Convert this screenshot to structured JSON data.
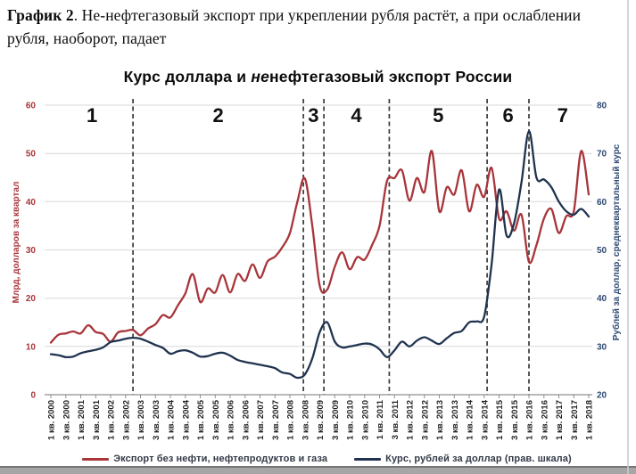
{
  "caption": {
    "label": "График 2",
    "text": ". Не-нефтегазовый экспорт при укреплении рубля растёт, а при ослаблении рубля, наоборот, падает"
  },
  "chart_data": {
    "type": "line",
    "title": "Курс доллара и ненефтегазовый экспорт России",
    "title_parts": {
      "prefix": "Курс доллара и ",
      "italic": "не",
      "suffix": "нефтегазовый экспорт России"
    },
    "left_axis": {
      "label": "Млрд, долларов за квартал",
      "min": 0,
      "max": 60,
      "step": 10,
      "color": "#a8353a"
    },
    "right_axis": {
      "label": "Рублей за доллар, среднеквартальный курс",
      "min": 20,
      "max": 80,
      "step": 10,
      "color": "#2f4a73"
    },
    "x_tick_labels": [
      "1 кв. 2000",
      "3 кв. 2000",
      "1 кв. 2001",
      "3 кв. 2001",
      "1 кв. 2002",
      "3 кв. 2002",
      "1 кв. 2003",
      "3 кв. 2003",
      "1 кв. 2004",
      "3 кв. 2004",
      "1 кв. 2005",
      "3 кв. 2005",
      "1 кв. 2006",
      "3 кв. 2006",
      "1 кв. 2007",
      "3 кв. 2007",
      "1 кв. 2008",
      "3 кв. 2008",
      "1 кв. 2009",
      "3 кв. 2009",
      "1 кв. 2010",
      "3 кв. 2010",
      "1 кв. 2011",
      "3 кв. 2011",
      "1 кв. 2012",
      "3 кв. 2012",
      "1 кв. 2013",
      "3 кв. 2013",
      "1 кв. 2014",
      "3 кв. 2014",
      "1 кв. 2015",
      "3 кв. 2015",
      "1 кв. 2016",
      "3 кв. 2016",
      "1 кв. 2017",
      "3 кв. 2017",
      "1 кв. 2018"
    ],
    "x_range_note": "quarterly 2000Q1 - 2018Q1, 73 points",
    "series": [
      {
        "name": "Экспорт без нефти, нефтепродуктов и газа",
        "axis": "left",
        "color": "#a8353a",
        "values": [
          10.8,
          12.4,
          12.7,
          13.1,
          12.7,
          14.4,
          13.0,
          12.6,
          11.0,
          12.9,
          13.2,
          13.4,
          12.3,
          13.7,
          14.6,
          16.5,
          16.0,
          18.5,
          21.0,
          25.0,
          19.2,
          22.0,
          21.2,
          24.8,
          21.2,
          25.0,
          23.6,
          27.0,
          24.2,
          27.6,
          28.6,
          30.6,
          33.5,
          40.0,
          44.8,
          35.0,
          22.5,
          21.8,
          26.5,
          29.5,
          26.0,
          28.5,
          28.0,
          31.0,
          35.0,
          44.3,
          44.9,
          46.5,
          40.2,
          44.9,
          42.0,
          50.5,
          38.0,
          43.0,
          41.5,
          46.5,
          38.0,
          43.5,
          41.0,
          47.0,
          36.5,
          38.0,
          34.0,
          37.3,
          27.5,
          31.0,
          36.5,
          38.5,
          33.5,
          37.0,
          38.0,
          50.5,
          41.5
        ]
      },
      {
        "name": "Курс, рублей за доллар (прав. шкала)",
        "axis": "right",
        "color": "#20334f",
        "values": [
          28.4,
          28.2,
          27.8,
          27.9,
          28.6,
          29.0,
          29.3,
          29.8,
          30.9,
          31.2,
          31.6,
          31.8,
          31.6,
          31.0,
          30.3,
          29.7,
          28.5,
          29.0,
          29.2,
          28.7,
          27.9,
          28.0,
          28.5,
          28.7,
          28.1,
          27.2,
          26.8,
          26.5,
          26.2,
          25.9,
          25.5,
          24.6,
          24.3,
          23.5,
          24.2,
          27.5,
          33.0,
          35.0,
          31.0,
          29.8,
          30.0,
          30.3,
          30.6,
          30.4,
          29.4,
          27.8,
          29.2,
          31.0,
          30.0,
          31.2,
          31.9,
          31.2,
          30.5,
          31.7,
          32.8,
          33.2,
          35.0,
          35.2,
          36.2,
          47.0,
          62.5,
          53.0,
          55.5,
          64.0,
          74.6,
          65.0,
          64.6,
          63.0,
          60.0,
          58.0,
          57.3,
          58.5,
          56.9
        ]
      }
    ],
    "region_dividers_q": [
      11.0,
      33.8,
      36.55,
      45.3,
      58.4,
      64.0
    ],
    "regions": [
      {
        "label": "1",
        "center_q": 5.5
      },
      {
        "label": "2",
        "center_q": 22.4
      },
      {
        "label": "3",
        "center_q": 35.15
      },
      {
        "label": "4",
        "center_q": 40.9
      },
      {
        "label": "5",
        "center_q": 51.85
      },
      {
        "label": "6",
        "center_q": 61.2
      },
      {
        "label": "7",
        "center_q": 68.5
      }
    ],
    "grid_color": "#d9d9d9",
    "axis_line_color": "#8f8f8f",
    "divider_color": "#3a3a3a",
    "tick_label_color": "#1f1f1f",
    "region_label_color": "#111111"
  },
  "legend": {
    "items": [
      {
        "label": "Экспорт без нефти, нефтепродуктов и газа",
        "color": "#a8353a"
      },
      {
        "label": "Курс, рублей за доллар (прав. шкала)",
        "color": "#20334f"
      }
    ]
  }
}
